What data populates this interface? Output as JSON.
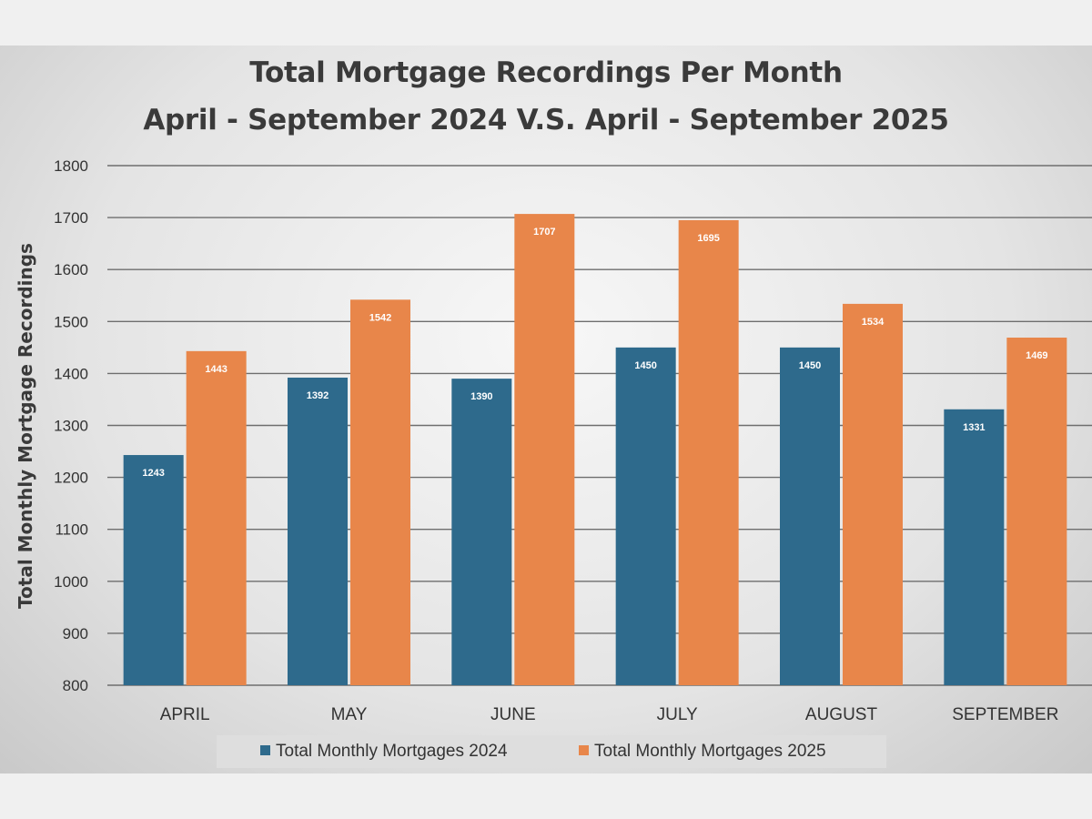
{
  "chart_data": {
    "type": "bar",
    "title": "Total Mortgage Recordings Per Month",
    "subtitle": "April - September 2024 V.S. April - September 2025",
    "ylabel": "Total Monthly Mortgage Recordings",
    "xlabel": "",
    "ylim": [
      800,
      1800
    ],
    "yticks": [
      "800",
      "900",
      "1000",
      "1100",
      "1200",
      "1300",
      "1400",
      "1500",
      "1600",
      "1700",
      "1800"
    ],
    "categories": [
      "APRIL",
      "MAY",
      "JUNE",
      "JULY",
      "AUGUST",
      "SEPTEMBER"
    ],
    "series": [
      {
        "name": "Total Monthly Mortgages 2024",
        "color": "#2e6a8c",
        "values": [
          1243,
          1392,
          1390,
          1450,
          1450,
          1331
        ]
      },
      {
        "name": "Total Monthly Mortgages 2025",
        "color": "#e8864a",
        "values": [
          1443,
          1542,
          1707,
          1695,
          1534,
          1469
        ]
      }
    ],
    "grid": true,
    "legend_position": "bottom",
    "data_labels": true
  }
}
